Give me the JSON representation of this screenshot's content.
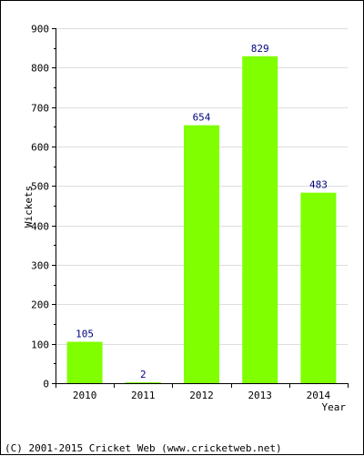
{
  "chart_data": {
    "type": "bar",
    "categories": [
      "2010",
      "2011",
      "2012",
      "2013",
      "2014"
    ],
    "values": [
      105,
      2,
      654,
      829,
      483
    ],
    "data_labels": [
      "105",
      "2",
      "654",
      "829",
      "483"
    ],
    "title": "",
    "xlabel": "Year",
    "ylabel": "Wickets",
    "ylim": [
      0,
      900
    ],
    "yticks": [
      "0",
      "100",
      "200",
      "300",
      "400",
      "500",
      "600",
      "700",
      "800",
      "900"
    ],
    "grid": true,
    "bar_color": "#80ff00",
    "label_color": "#000080"
  },
  "footer": {
    "credit": "(C) 2001-2015 Cricket Web (www.cricketweb.net)"
  }
}
